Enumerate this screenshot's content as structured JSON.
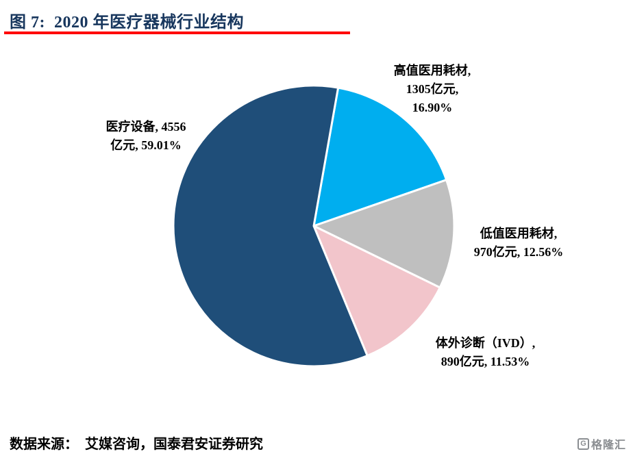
{
  "figure": {
    "title": "图 7:  2020 年医疗器械行业结构",
    "source": "数据来源：  艾媒咨询，国泰君安证券研究",
    "accent_underline_color": "#FF0000",
    "title_color": "#17365D"
  },
  "chart_data": {
    "type": "pie",
    "title": "2020 年医疗器械行业结构",
    "unit": "亿元",
    "start_angle_deg": 10,
    "direction": "clockwise",
    "legend_position": "none",
    "slices": [
      {
        "id": "high-value-consumables",
        "label": "高值医用耗材",
        "value": 1305,
        "percent": 16.9,
        "color": "#00AEEF"
      },
      {
        "id": "low-value-consumables",
        "label": "低值医用耗材",
        "value": 970,
        "percent": 12.56,
        "color": "#BFBFBF"
      },
      {
        "id": "ivd",
        "label": "体外诊断（IVD）",
        "value": 890,
        "percent": 11.53,
        "color": "#F2C5CB"
      },
      {
        "id": "medical-equipment",
        "label": "医疗设备",
        "value": 4556,
        "percent": 59.01,
        "color": "#1F4E79"
      }
    ]
  },
  "labels": {
    "high_value": {
      "line1": "高值医用耗材,",
      "line2": "1305亿元,",
      "line3": "16.90%"
    },
    "medical_equipment": {
      "line1": "医疗设备, 4556",
      "line2": "亿元, 59.01%"
    },
    "low_value": {
      "line1": "低值医用耗材,",
      "line2": "970亿元, 12.56%"
    },
    "ivd": {
      "line1": "体外诊断（IVD）,",
      "line2": "890亿元, 11.53%"
    }
  },
  "logo": {
    "g": "G",
    "text": "格隆汇"
  }
}
